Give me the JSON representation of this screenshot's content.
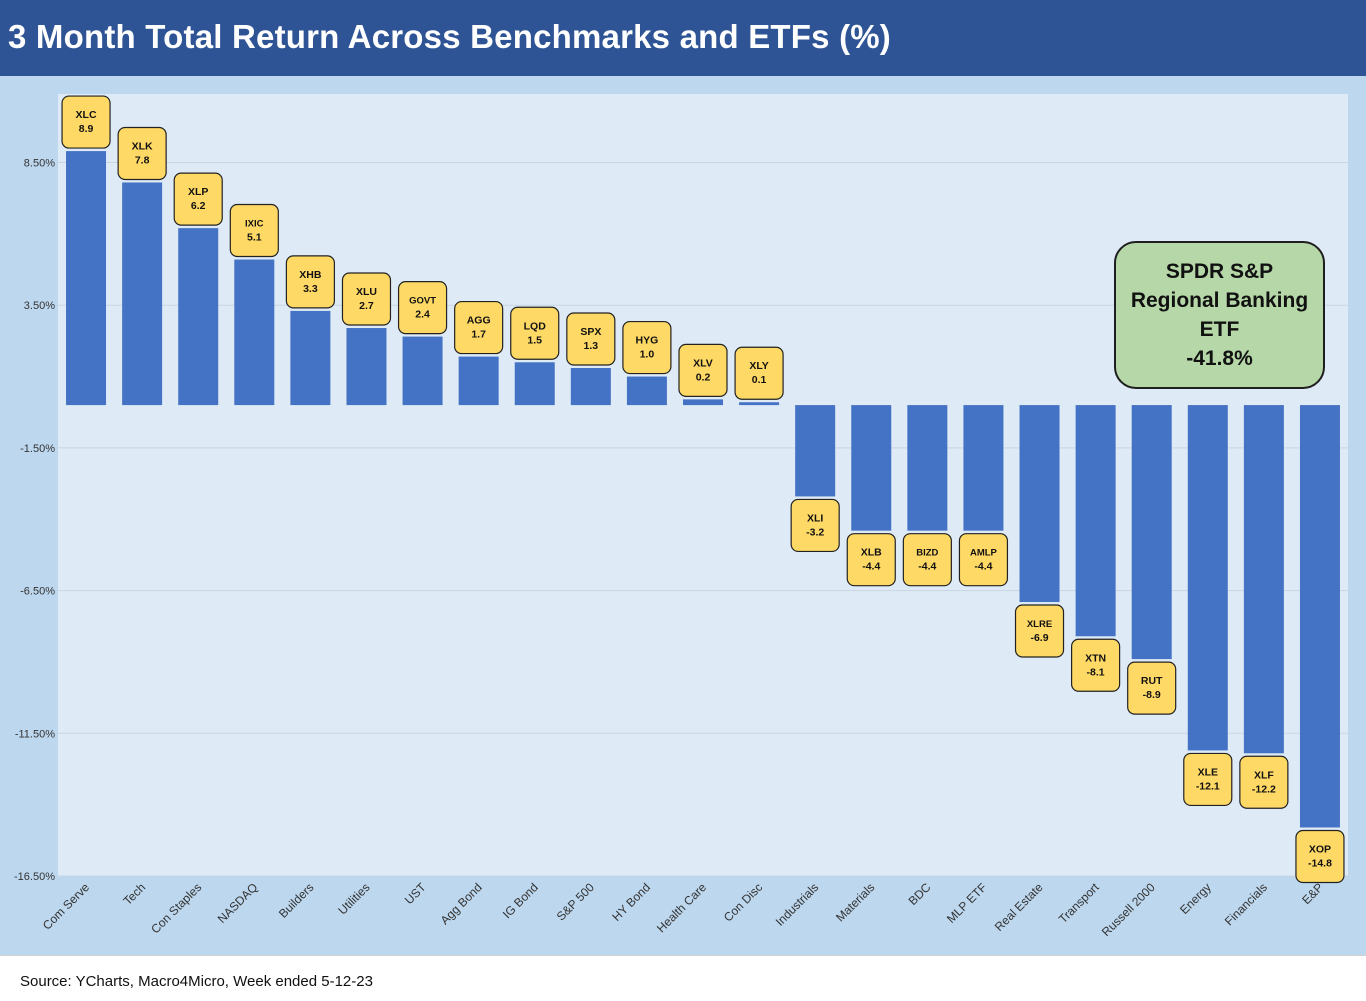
{
  "header": {
    "title": "3 Month Total Return Across Benchmarks and ETFs (%)"
  },
  "callout": {
    "lines": [
      "SPDR S&P",
      "Regional Banking",
      "ETF",
      "-41.8%"
    ],
    "fill": "#b6d7a8"
  },
  "footer": {
    "source": "Source: YCharts, Macro4Micro, Week ended 5-12-23"
  },
  "chart_data": {
    "type": "bar",
    "title": "3 Month Total Return Across Benchmarks and ETFs (%)",
    "xlabel": "",
    "ylabel": "",
    "ylim": [
      -16.5,
      10.9
    ],
    "yticks": [
      8.5,
      3.5,
      -1.5,
      -6.5,
      -11.5,
      -16.5
    ],
    "ytick_labels": [
      "8.50%",
      "3.50%",
      "-1.50%",
      "-6.50%",
      "-11.50%",
      "-16.50%"
    ],
    "grid": true,
    "legend": "none",
    "bar_color": "#4472c4",
    "label_fill": "#ffd966",
    "plot_bg": "#deebf7",
    "categories": [
      "Com Serve",
      "Tech",
      "Con Staples",
      "NASDAQ",
      "Builders",
      "Utilities",
      "UST",
      "Agg Bond",
      "IG Bond",
      "S&P 500",
      "HY Bond",
      "Health Care",
      "Con Disc",
      "Industrials",
      "Materials",
      "BDC",
      "MLP ETF",
      "Real Estate",
      "Transport",
      "Russell 2000",
      "Energy",
      "Financials",
      "E&P"
    ],
    "tickers": [
      "XLC",
      "XLK",
      "XLP",
      "IXIC",
      "XHB",
      "XLU",
      "GOVT",
      "AGG",
      "LQD",
      "SPX",
      "HYG",
      "XLV",
      "XLY",
      "XLI",
      "XLB",
      "BIZD",
      "AMLP",
      "XLRE",
      "XTN",
      "RUT",
      "XLE",
      "XLF",
      "XOP"
    ],
    "values": [
      8.9,
      7.8,
      6.2,
      5.1,
      3.3,
      2.7,
      2.4,
      1.7,
      1.5,
      1.3,
      1.0,
      0.2,
      0.1,
      -3.2,
      -4.4,
      -4.4,
      -4.4,
      -6.9,
      -8.1,
      -8.9,
      -12.1,
      -12.2,
      -14.8
    ],
    "value_labels": [
      "8.9",
      "7.8",
      "6.2",
      "5.1",
      "3.3",
      "2.7",
      "2.4",
      "1.7",
      "1.5",
      "1.3",
      "1.0",
      "0.2",
      "0.1",
      "-3.2",
      "-4.4",
      "-4.4",
      "-4.4",
      "-6.9",
      "-8.1",
      "-8.9",
      "-12.1",
      "-12.2",
      "-14.8"
    ]
  }
}
